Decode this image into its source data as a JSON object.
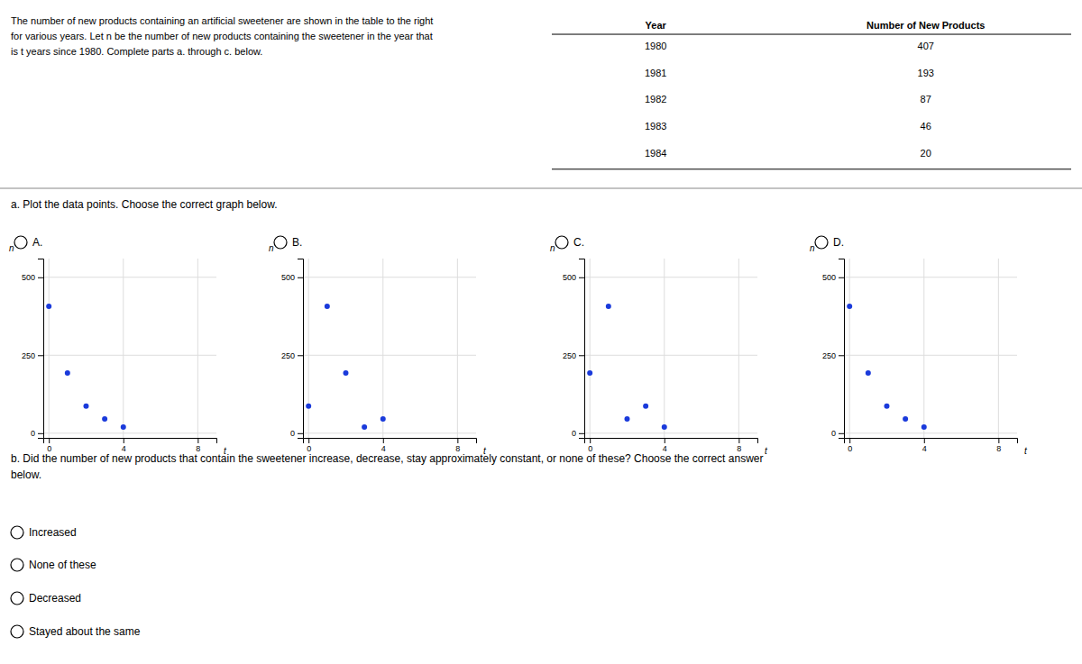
{
  "description": [
    "The number of new products containing an artificial sweetener are shown in the table to the right",
    "for various years. Let n be the number of new products containing the sweetener in the year that",
    "is t years since 1980. Complete parts a. through c. below."
  ],
  "part_a": "a. Plot the data points. Choose the correct graph below.",
  "part_b": "b. Did the number of new products that contain the sweetener increase, decrease, stay approximately constant, or none of these? Choose the correct answer\nbelow.",
  "options": [
    "Increased",
    "None of these",
    "Decreased",
    "Stayed about the same"
  ],
  "chart_data": [
    {
      "type": "table",
      "x_label": "Year",
      "categories": [
        "1980",
        "1981",
        "1982",
        "1983",
        "1984"
      ],
      "series": [
        {
          "name": "Number of New Products",
          "values": [
            407,
            193,
            87,
            46,
            20
          ]
        }
      ]
    },
    {
      "type": "scatter",
      "title": "A.",
      "x_label": "t",
      "y_label": "n",
      "x": [
        0,
        1,
        2,
        3,
        4
      ],
      "values": [
        407,
        193,
        87,
        46,
        20
      ],
      "color": "#1a3adb",
      "xlim": [
        -0.3,
        9.0
      ],
      "ylim": [
        -15,
        560
      ],
      "xticks": [
        0,
        4,
        8
      ],
      "yticks": [
        0,
        250,
        500
      ],
      "grid": true
    },
    {
      "type": "scatter",
      "title": "B.",
      "x_label": "t",
      "y_label": "n",
      "x": [
        0,
        1,
        2,
        3,
        4
      ],
      "values": [
        87,
        407,
        193,
        20,
        46
      ],
      "color": "#1a3adb",
      "xlim": [
        -0.3,
        9.0
      ],
      "ylim": [
        -15,
        560
      ],
      "xticks": [
        0,
        4,
        8
      ],
      "yticks": [
        0,
        250,
        500
      ],
      "grid": true
    },
    {
      "type": "scatter",
      "title": "C.",
      "x_label": "t",
      "y_label": "n",
      "x": [
        0,
        1,
        2,
        3,
        4
      ],
      "values": [
        193,
        407,
        46,
        87,
        20
      ],
      "color": "#1a3adb",
      "xlim": [
        -0.3,
        9.0
      ],
      "ylim": [
        -15,
        560
      ],
      "xticks": [
        0,
        4,
        8
      ],
      "yticks": [
        0,
        250,
        500
      ],
      "grid": true
    },
    {
      "type": "scatter",
      "title": "D.",
      "x_label": "t",
      "y_label": "n",
      "x": [
        0,
        1,
        2,
        3,
        4
      ],
      "values": [
        407,
        193,
        87,
        46,
        20
      ],
      "color": "#1a3adb",
      "xlim": [
        -0.3,
        9.0
      ],
      "ylim": [
        -15,
        560
      ],
      "xticks": [
        0,
        4,
        8
      ],
      "yticks": [
        0,
        250,
        500
      ],
      "grid": true
    }
  ]
}
